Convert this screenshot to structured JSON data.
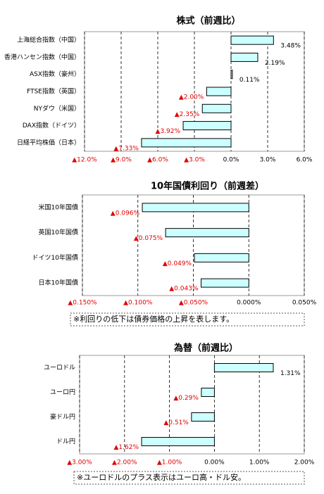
{
  "chart_data": [
    {
      "type": "hbar",
      "title": "株式（前週比）",
      "categories": [
        "上海総合指数（中国）",
        "香港ハンセン指数（中国）",
        "ASX指数（豪州）",
        "FTSE指数（英国）",
        "NYダウ（米国）",
        "DAX指数（ドイツ）",
        "日経平均株価（日本）"
      ],
      "values": [
        3.48,
        2.19,
        0.11,
        -2.0,
        -2.35,
        -3.92,
        -7.33
      ],
      "value_labels": [
        "3.48%",
        "2.19%",
        "0.11%",
        "▲2.00%",
        "▲2.35%",
        "▲3.92%",
        "▲7.33%"
      ],
      "color": "#ccffff",
      "xlim": [
        -12,
        6
      ],
      "xticks": [
        {
          "value": -12,
          "label": "▲12.0%"
        },
        {
          "value": -9,
          "label": "▲9.0%"
        },
        {
          "value": -6,
          "label": "▲6.0%"
        },
        {
          "value": -3,
          "label": "▲3.0%"
        },
        {
          "value": 0,
          "label": "0.0%"
        },
        {
          "value": 3,
          "label": "3.0%"
        },
        {
          "value": 6,
          "label": "6.0%"
        }
      ],
      "grid": true
    },
    {
      "type": "hbar",
      "title": "10年国債利回り（前週差）",
      "categories": [
        "米国10年国債",
        "英国10年国債",
        "ドイツ10年国債",
        "日本10年国債"
      ],
      "values": [
        -0.096,
        -0.075,
        -0.049,
        -0.043
      ],
      "value_labels": [
        "▲0.096%",
        "▲0.075%",
        "▲0.049%",
        "▲0.043%"
      ],
      "color": "#ccffff",
      "xlim": [
        -0.15,
        0.05
      ],
      "xticks": [
        {
          "value": -0.15,
          "label": "▲0.150%"
        },
        {
          "value": -0.1,
          "label": "▲0.100%"
        },
        {
          "value": -0.05,
          "label": "▲0.050%"
        },
        {
          "value": 0,
          "label": "0.000%"
        },
        {
          "value": 0.05,
          "label": "0.050%"
        }
      ],
      "grid": true,
      "note": "※利回りの低下は債券価格の上昇を表します。"
    },
    {
      "type": "hbar",
      "title": "為替（前週比）",
      "categories": [
        "ユーロドル",
        "ユーロ円",
        "豪ドル円",
        "ドル円"
      ],
      "values": [
        1.31,
        -0.29,
        -0.51,
        -1.62
      ],
      "value_labels": [
        "1.31%",
        "▲0.29%",
        "▲0.51%",
        "▲1.62%"
      ],
      "color": "#ccffff",
      "xlim": [
        -3,
        2
      ],
      "xticks": [
        {
          "value": -3,
          "label": "▲3.00%"
        },
        {
          "value": -2,
          "label": "▲2.00%"
        },
        {
          "value": -1,
          "label": "▲1.00%"
        },
        {
          "value": 0,
          "label": "0.00%"
        },
        {
          "value": 1,
          "label": "1.00%"
        },
        {
          "value": 2,
          "label": "2.00%"
        }
      ],
      "grid": true,
      "note": "※ユーロドルのプラス表示はユーロ高・ドル安。"
    }
  ]
}
